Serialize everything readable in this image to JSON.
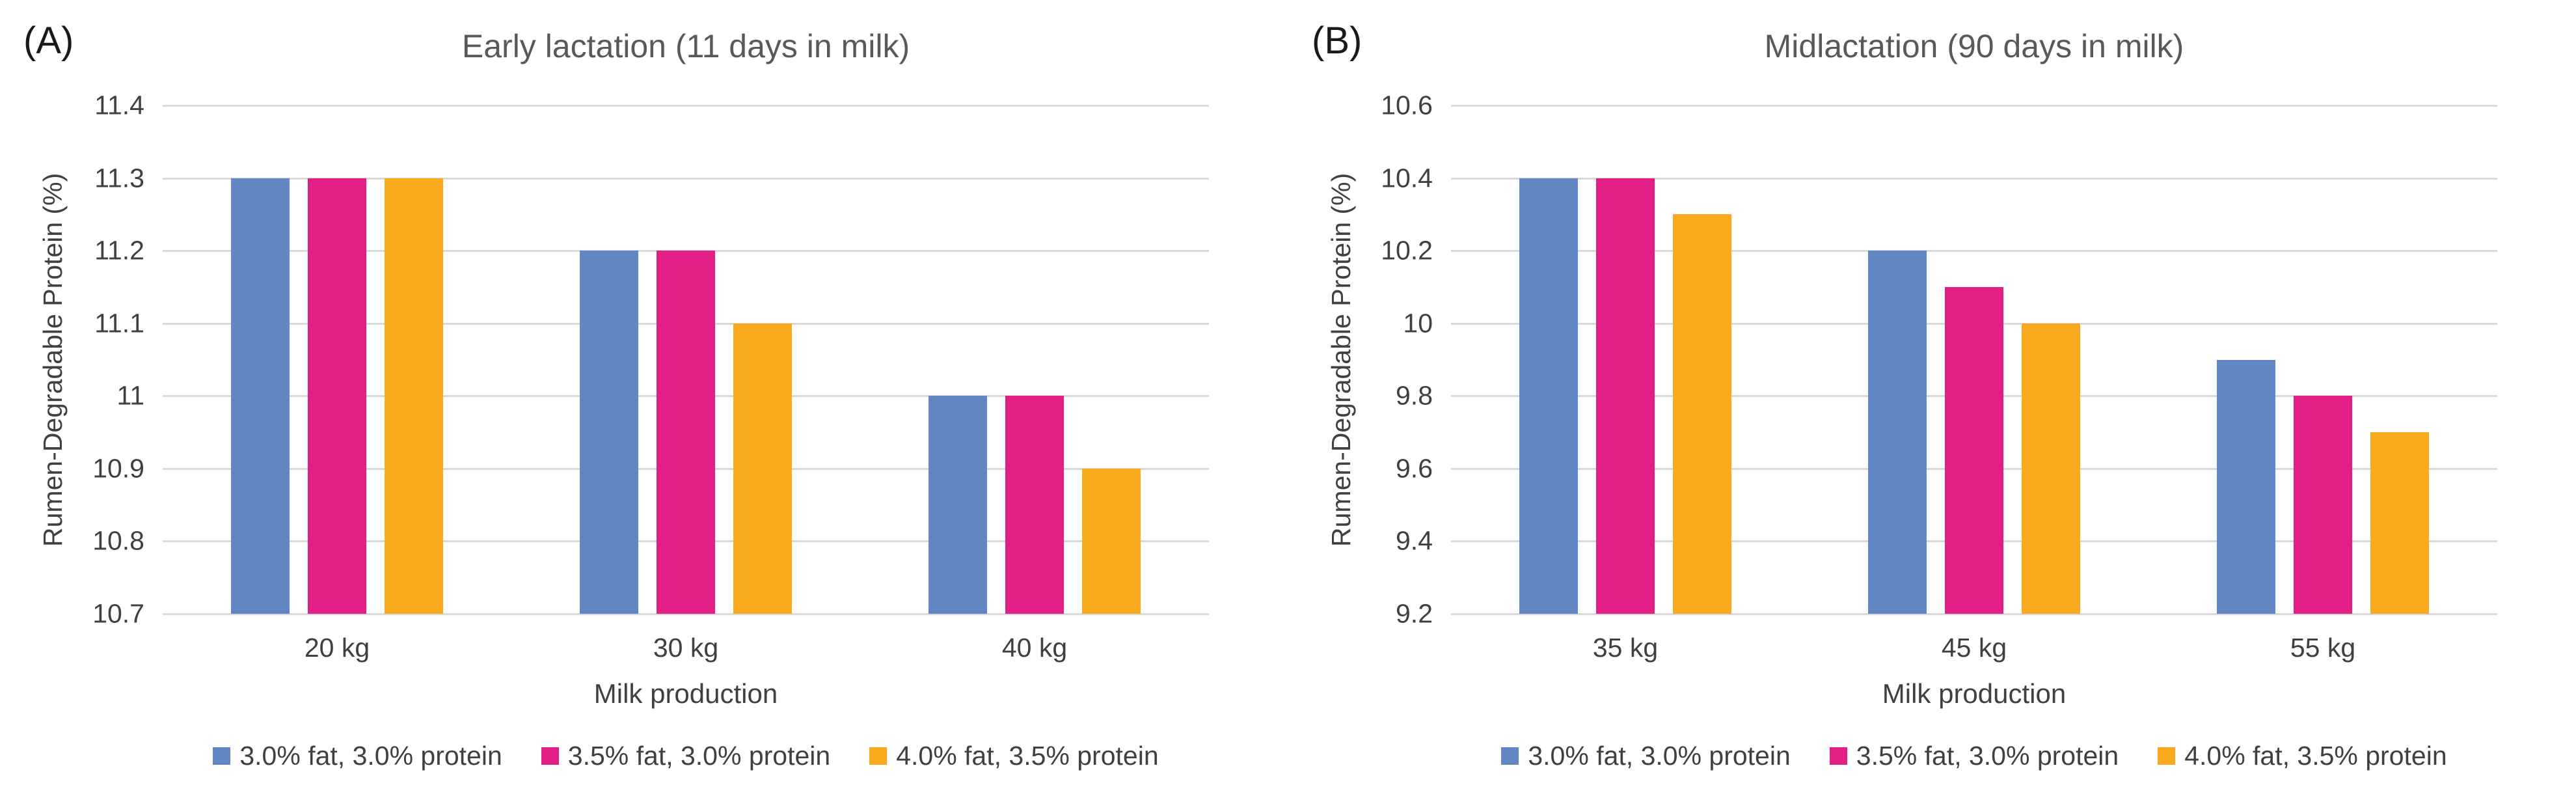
{
  "figure": {
    "background": "#ffffff"
  },
  "colors": {
    "gridline": "#D9D9D9",
    "axis_text": "#404040",
    "title_text": "#595959",
    "panel_label_text": "#1A1A1A",
    "series_blue": "#6386C5",
    "series_magenta": "#E21E87",
    "series_orange": "#F8A91D"
  },
  "chart_data": [
    {
      "type": "bar",
      "panel_label": "(A)",
      "title": "Early lactation (11 days in milk)",
      "xlabel": "Milk production",
      "ylabel": "Rumen-Degradable Protein (%)",
      "categories": [
        "20 kg",
        "30 kg",
        "40 kg"
      ],
      "series": [
        {
          "name": "3.0% fat, 3.0% protein",
          "color": "#6386C5",
          "values": [
            11.3,
            11.2,
            11.0
          ]
        },
        {
          "name": "3.5% fat, 3.0% protein",
          "color": "#E21E87",
          "values": [
            11.3,
            11.2,
            11.0
          ]
        },
        {
          "name": "4.0% fat, 3.5% protein",
          "color": "#F8A91D",
          "values": [
            11.3,
            11.1,
            10.9
          ]
        }
      ],
      "ylim": [
        10.7,
        11.4
      ],
      "yticks": [
        "11.4",
        "11.3",
        "11.2",
        "11.1",
        "11",
        "10.9",
        "10.8",
        "10.7"
      ],
      "grid": true,
      "legend_position": "bottom"
    },
    {
      "type": "bar",
      "panel_label": "(B)",
      "title": "Midlactation (90 days in milk)",
      "xlabel": "Milk production",
      "ylabel": "Rumen-Degradable Protein (%)",
      "categories": [
        "35 kg",
        "45 kg",
        "55 kg"
      ],
      "series": [
        {
          "name": "3.0% fat, 3.0% protein",
          "color": "#6386C5",
          "values": [
            10.4,
            10.2,
            9.9
          ]
        },
        {
          "name": "3.5% fat, 3.0% protein",
          "color": "#E21E87",
          "values": [
            10.4,
            10.1,
            9.8
          ]
        },
        {
          "name": "4.0% fat, 3.5% protein",
          "color": "#F8A91D",
          "values": [
            10.3,
            10.0,
            9.7
          ]
        }
      ],
      "ylim": [
        9.2,
        10.6
      ],
      "yticks": [
        "10.6",
        "10.4",
        "10.2",
        "10",
        "9.8",
        "9.6",
        "9.4",
        "9.2"
      ],
      "grid": true,
      "legend_position": "bottom"
    }
  ]
}
